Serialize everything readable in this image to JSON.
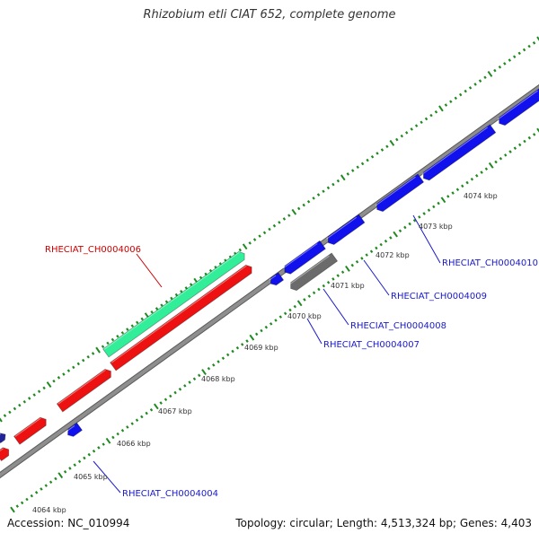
{
  "title": "Rhizobium etli CIAT 652, complete genome",
  "footer": {
    "accession": "Accession: NC_010994",
    "summary": "Topology: circular; Length: 4,513,324 bp; Genes: 4,403"
  },
  "colors": {
    "backbone": "#8e8e8e",
    "backbone_edge": "#5a5a5a",
    "tick": "#1f8a1f",
    "label_link_blue": "#1a1acc",
    "label_link_red": "#cc0000",
    "kbp_text": "#333333"
  },
  "scale_labels": [
    "4064 kbp",
    "4065 kbp",
    "4066 kbp",
    "4067 kbp",
    "4068 kbp",
    "4069 kbp",
    "4070 kbp",
    "4071 kbp",
    "4072 kbp",
    "4073 kbp",
    "4074 kbp"
  ],
  "gene_labels": [
    {
      "text": "RHECIAT_CH0004006",
      "color": "#cc0000"
    },
    {
      "text": "RHECIAT_CH0004010",
      "color": "#1a1acc"
    },
    {
      "text": "RHECIAT_CH0004009",
      "color": "#1a1acc"
    },
    {
      "text": "RHECIAT_CH0004008",
      "color": "#1a1acc"
    },
    {
      "text": "RHECIAT_CH0004007",
      "color": "#1a1acc"
    },
    {
      "text": "RHECIAT_CH0004004",
      "color": "#1a1acc"
    }
  ],
  "features": {
    "forward_teal": {
      "color": "#33ee99"
    },
    "forward_red": {
      "color": "#ee1111"
    },
    "reverse_blue": {
      "color": "#1111ee"
    },
    "gray": {
      "color": "#6b6b6b"
    }
  }
}
